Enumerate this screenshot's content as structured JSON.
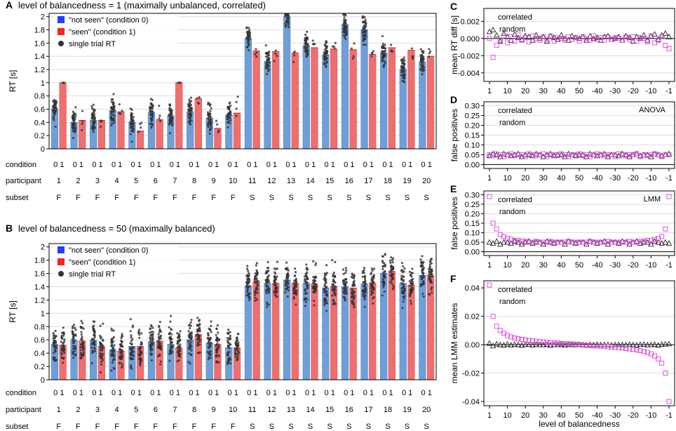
{
  "colors": {
    "not_seen": "#6f9fd8",
    "seen": "#ef6f6f",
    "not_seen_legend": "#1f3fff",
    "seen_legend": "#ff2020",
    "correlated": "#e040e0",
    "random": "#222222",
    "dots": "#333333",
    "grid": "#dddddd"
  },
  "row_labels": {
    "condition": "condition",
    "participant": "participant",
    "subset": "subset",
    "condition_value": "0 1"
  },
  "chart_data": [
    {
      "id": "A",
      "panel_label": "A",
      "type": "bar",
      "title": "level of balancedness = 1 (maximally unbalanced, correlated)",
      "ylabel": "RT [s]",
      "ylim": [
        0,
        2.05
      ],
      "yticks": [
        "0",
        "0.2",
        "0.4",
        "0.6",
        "0.8",
        "1",
        "1.2",
        "1.4",
        "1.6",
        "1.8",
        "2"
      ],
      "legend": [
        "\"not seen\" (condition 0)",
        "\"seen\" (condition 1)",
        "single trial RT"
      ],
      "participants": [
        "1",
        "2",
        "3",
        "4",
        "5",
        "6",
        "7",
        "8",
        "9",
        "10",
        "11",
        "12",
        "13",
        "14",
        "15",
        "16",
        "17",
        "18",
        "19",
        "20"
      ],
      "subsets": [
        "F",
        "F",
        "F",
        "F",
        "F",
        "F",
        "F",
        "F",
        "F",
        "F",
        "S",
        "S",
        "S",
        "S",
        "S",
        "S",
        "S",
        "S",
        "S",
        "S"
      ],
      "series": [
        {
          "name": "not seen (condition 0)",
          "values": [
            0.6,
            0.4,
            0.43,
            0.58,
            0.4,
            0.55,
            0.5,
            0.56,
            0.46,
            0.51,
            1.67,
            1.32,
            2.0,
            1.56,
            1.42,
            1.88,
            1.8,
            1.45,
            1.2,
            1.31
          ]
        },
        {
          "name": "seen (condition 1)",
          "values": [
            1.0,
            0.43,
            0.43,
            0.56,
            0.27,
            0.44,
            1.0,
            0.76,
            0.31,
            0.54,
            1.48,
            1.47,
            1.45,
            1.53,
            1.51,
            1.5,
            1.43,
            1.53,
            1.49,
            1.4
          ]
        }
      ]
    },
    {
      "id": "B",
      "panel_label": "B",
      "type": "bar",
      "title": "level of balancedness = 50 (maximally balanced)",
      "ylabel": "RT [s]",
      "ylim": [
        0,
        2.05
      ],
      "yticks": [
        "0",
        "0.2",
        "0.4",
        "0.6",
        "0.8",
        "1",
        "1.2",
        "1.4",
        "1.6",
        "1.8",
        "2"
      ],
      "legend": [
        "\"not seen\" (condition 0)",
        "\"seen\" (condition 1)",
        "single trial RT"
      ],
      "participants": [
        "1",
        "2",
        "3",
        "4",
        "5",
        "6",
        "7",
        "8",
        "9",
        "10",
        "11",
        "12",
        "13",
        "14",
        "15",
        "16",
        "17",
        "18",
        "19",
        "20"
      ],
      "subsets": [
        "F",
        "F",
        "F",
        "F",
        "F",
        "F",
        "F",
        "F",
        "F",
        "F",
        "S",
        "S",
        "S",
        "S",
        "S",
        "S",
        "S",
        "S",
        "S",
        "S"
      ],
      "series": [
        {
          "name": "not seen (condition 0)",
          "values": [
            0.53,
            0.59,
            0.59,
            0.45,
            0.5,
            0.57,
            0.53,
            0.6,
            0.55,
            0.48,
            1.41,
            1.45,
            1.5,
            1.45,
            1.38,
            1.4,
            1.44,
            1.6,
            1.45,
            1.57
          ]
        },
        {
          "name": "seen (condition 1)",
          "values": [
            0.52,
            0.58,
            0.5,
            0.43,
            0.5,
            0.58,
            0.48,
            0.68,
            0.53,
            0.48,
            1.48,
            1.45,
            1.45,
            1.44,
            1.4,
            1.38,
            1.45,
            1.63,
            1.42,
            1.57
          ]
        }
      ]
    },
    {
      "id": "C",
      "panel_label": "C",
      "type": "scatter",
      "ylabel": "mean RT diff [s]",
      "ylim": [
        -0.005,
        0.0035
      ],
      "yticks": [
        "0.002",
        "0.000",
        "-0.002",
        "-0.004"
      ],
      "xticks": [
        "1",
        "10",
        "20",
        "30",
        "40",
        "50",
        "-40",
        "-30",
        "-20",
        "-10",
        "-1"
      ],
      "legend": [
        "correlated",
        "random"
      ],
      "series": [
        {
          "name": "correlated",
          "values": [
            0.0,
            -0.0022,
            -0.0008,
            -0.0002,
            0.0003,
            -0.0005,
            0.0002,
            -0.0003,
            0.0004,
            -0.0002,
            0.0001,
            -0.0004,
            0.0003,
            0.0,
            -0.0002,
            0.0002,
            -0.0001,
            0.0003,
            -0.0003,
            0.0001,
            0.0,
            -0.0002,
            0.0002,
            -0.0001,
            0.0001,
            -0.0003,
            0.0002,
            0.0,
            -0.0002,
            0.0003,
            -0.0001,
            0.0001,
            -0.0002,
            0.0002,
            -0.0001,
            0.0001,
            0.0,
            -0.0002,
            0.0002,
            -0.0001,
            0.0002,
            -0.0003,
            0.0001,
            0.0,
            -0.0004,
            0.0003,
            -0.0005,
            -0.0002,
            0.0002,
            -0.0008,
            -0.0012
          ]
        },
        {
          "name": "random",
          "values": [
            0.0008,
            0.001,
            0.0004,
            -0.0003,
            0.0006,
            0.0002,
            -0.0002,
            0.0005,
            0.0001,
            -0.0001,
            0.0003,
            0.0002,
            -0.0002,
            0.0004,
            0.0,
            0.0002,
            -0.0003,
            0.0003,
            0.0001,
            -0.0001,
            0.0004,
            0.0,
            -0.0002,
            0.0003,
            0.0001,
            0.0,
            0.0002,
            -0.0002,
            0.0003,
            0.0,
            0.0001,
            -0.0002,
            0.0002,
            0.0003,
            -0.0001,
            0.0,
            0.0002,
            -0.0002,
            0.0003,
            0.0001,
            -0.0003,
            0.0002,
            0.0,
            0.0004,
            -0.0002,
            0.0003,
            0.0005,
            -0.0001,
            0.0004,
            0.0006,
            0.0002
          ]
        }
      ]
    },
    {
      "id": "D",
      "panel_label": "D",
      "type": "scatter",
      "ylabel": "false positives",
      "annotation": "ANOVA",
      "ylim": [
        -0.02,
        0.32
      ],
      "yticks": [
        "0.00",
        "0.05",
        "0.10",
        "0.15",
        "0.20",
        "0.25",
        "0.30"
      ],
      "xticks": [
        "1",
        "10",
        "20",
        "30",
        "40",
        "50",
        "-40",
        "-30",
        "-20",
        "-10",
        "-1"
      ],
      "legend": [
        "correlated",
        "random"
      ],
      "series": [
        {
          "name": "correlated",
          "values": [
            0.05,
            0.045,
            0.055,
            0.05,
            0.04,
            0.05,
            0.055,
            0.045,
            0.05,
            0.05,
            0.04,
            0.055,
            0.05,
            0.045,
            0.05,
            0.055,
            0.04,
            0.05,
            0.05,
            0.045,
            0.055,
            0.05,
            0.04,
            0.05,
            0.05,
            0.055,
            0.045,
            0.05,
            0.04,
            0.05,
            0.055,
            0.05,
            0.045,
            0.05,
            0.05,
            0.04,
            0.055,
            0.05,
            0.045,
            0.05,
            0.05,
            0.055,
            0.04,
            0.05,
            0.045,
            0.05,
            0.055,
            0.05,
            0.04,
            0.05,
            0.05
          ]
        },
        {
          "name": "random",
          "values": [
            0.045,
            0.055,
            0.05,
            0.04,
            0.055,
            0.05,
            0.045,
            0.05,
            0.055,
            0.04,
            0.05,
            0.05,
            0.045,
            0.055,
            0.05,
            0.04,
            0.05,
            0.055,
            0.045,
            0.05,
            0.05,
            0.04,
            0.055,
            0.05,
            0.045,
            0.05,
            0.05,
            0.04,
            0.055,
            0.05,
            0.045,
            0.05,
            0.055,
            0.04,
            0.05,
            0.05,
            0.045,
            0.055,
            0.05,
            0.04,
            0.05,
            0.055,
            0.045,
            0.05,
            0.05,
            0.04,
            0.055,
            0.05,
            0.045,
            0.05,
            0.055
          ]
        }
      ]
    },
    {
      "id": "E",
      "panel_label": "E",
      "type": "scatter",
      "ylabel": "false positives",
      "annotation": "LMM",
      "ylim": [
        -0.02,
        0.32
      ],
      "yticks": [
        "0.00",
        "0.05",
        "0.10",
        "0.15",
        "0.20",
        "0.25",
        "0.30"
      ],
      "xticks": [
        "1",
        "10",
        "20",
        "30",
        "40",
        "50",
        "-40",
        "-30",
        "-20",
        "-10",
        "-1"
      ],
      "legend": [
        "correlated",
        "random"
      ],
      "series": [
        {
          "name": "correlated",
          "values": [
            0.29,
            0.15,
            0.12,
            0.09,
            0.08,
            0.07,
            0.065,
            0.06,
            0.06,
            0.055,
            0.055,
            0.05,
            0.05,
            0.055,
            0.05,
            0.05,
            0.05,
            0.055,
            0.05,
            0.05,
            0.05,
            0.05,
            0.055,
            0.05,
            0.05,
            0.05,
            0.05,
            0.05,
            0.055,
            0.05,
            0.05,
            0.05,
            0.05,
            0.055,
            0.05,
            0.05,
            0.05,
            0.05,
            0.05,
            0.055,
            0.05,
            0.05,
            0.055,
            0.055,
            0.06,
            0.06,
            0.065,
            0.07,
            0.08,
            0.12,
            0.29
          ]
        },
        {
          "name": "random",
          "values": [
            0.05,
            0.045,
            0.055,
            0.04,
            0.05,
            0.05,
            0.045,
            0.055,
            0.05,
            0.04,
            0.05,
            0.055,
            0.045,
            0.05,
            0.05,
            0.04,
            0.055,
            0.05,
            0.045,
            0.05,
            0.05,
            0.04,
            0.055,
            0.05,
            0.045,
            0.05,
            0.05,
            0.04,
            0.055,
            0.05,
            0.045,
            0.05,
            0.055,
            0.04,
            0.05,
            0.05,
            0.045,
            0.055,
            0.05,
            0.04,
            0.05,
            0.055,
            0.045,
            0.05,
            0.05,
            0.04,
            0.055,
            0.05,
            0.045,
            0.05,
            0.045
          ]
        }
      ]
    },
    {
      "id": "F",
      "panel_label": "F",
      "type": "scatter",
      "ylabel": "mean LMM estimates",
      "xlabel": "level of balancedness",
      "ylim": [
        -0.043,
        0.045
      ],
      "yticks": [
        "0.04",
        "0.02",
        "0.00",
        "-0.02",
        "-0.04"
      ],
      "xticks": [
        "1",
        "10",
        "20",
        "30",
        "40",
        "50",
        "-40",
        "-30",
        "-20",
        "-10",
        "-1"
      ],
      "legend": [
        "correlated",
        "random"
      ],
      "series": [
        {
          "name": "correlated",
          "values": [
            0.042,
            0.02,
            0.013,
            0.01,
            0.008,
            0.0065,
            0.0055,
            0.0048,
            0.0042,
            0.0037,
            0.0033,
            0.003,
            0.0027,
            0.0024,
            0.0021,
            0.0019,
            0.0017,
            0.0015,
            0.0013,
            0.0011,
            0.0009,
            0.0008,
            0.0006,
            0.0005,
            0.0003,
            0.0,
            -0.0003,
            -0.0005,
            -0.0006,
            -0.0008,
            -0.0009,
            -0.0011,
            -0.0013,
            -0.0015,
            -0.0017,
            -0.0019,
            -0.0021,
            -0.0024,
            -0.0027,
            -0.003,
            -0.0033,
            -0.0037,
            -0.0042,
            -0.0048,
            -0.0055,
            -0.0065,
            -0.008,
            -0.01,
            -0.013,
            -0.02,
            -0.04
          ]
        },
        {
          "name": "random",
          "values": [
            0.001,
            -0.0008,
            0.0005,
            0.0,
            -0.0003,
            0.0004,
            -0.0002,
            0.0003,
            0.0,
            -0.0004,
            0.0002,
            0.0001,
            -0.0002,
            0.0003,
            0.0,
            -0.0001,
            0.0002,
            -0.0003,
            0.0001,
            0.0,
            0.0002,
            -0.0002,
            0.0001,
            0.0,
            -0.0001,
            0.0002,
            0.0,
            -0.0002,
            0.0001,
            0.0,
            0.0002,
            -0.0001,
            0.0,
            0.0001,
            -0.0002,
            0.0,
            0.0001,
            0.0,
            -0.0001,
            0.0002,
            0.0,
            -0.0002,
            0.0001,
            0.0003,
            -0.0001,
            0.0,
            0.0002,
            -0.0003,
            0.0002,
            0.0004,
            0.0006
          ]
        }
      ]
    }
  ]
}
